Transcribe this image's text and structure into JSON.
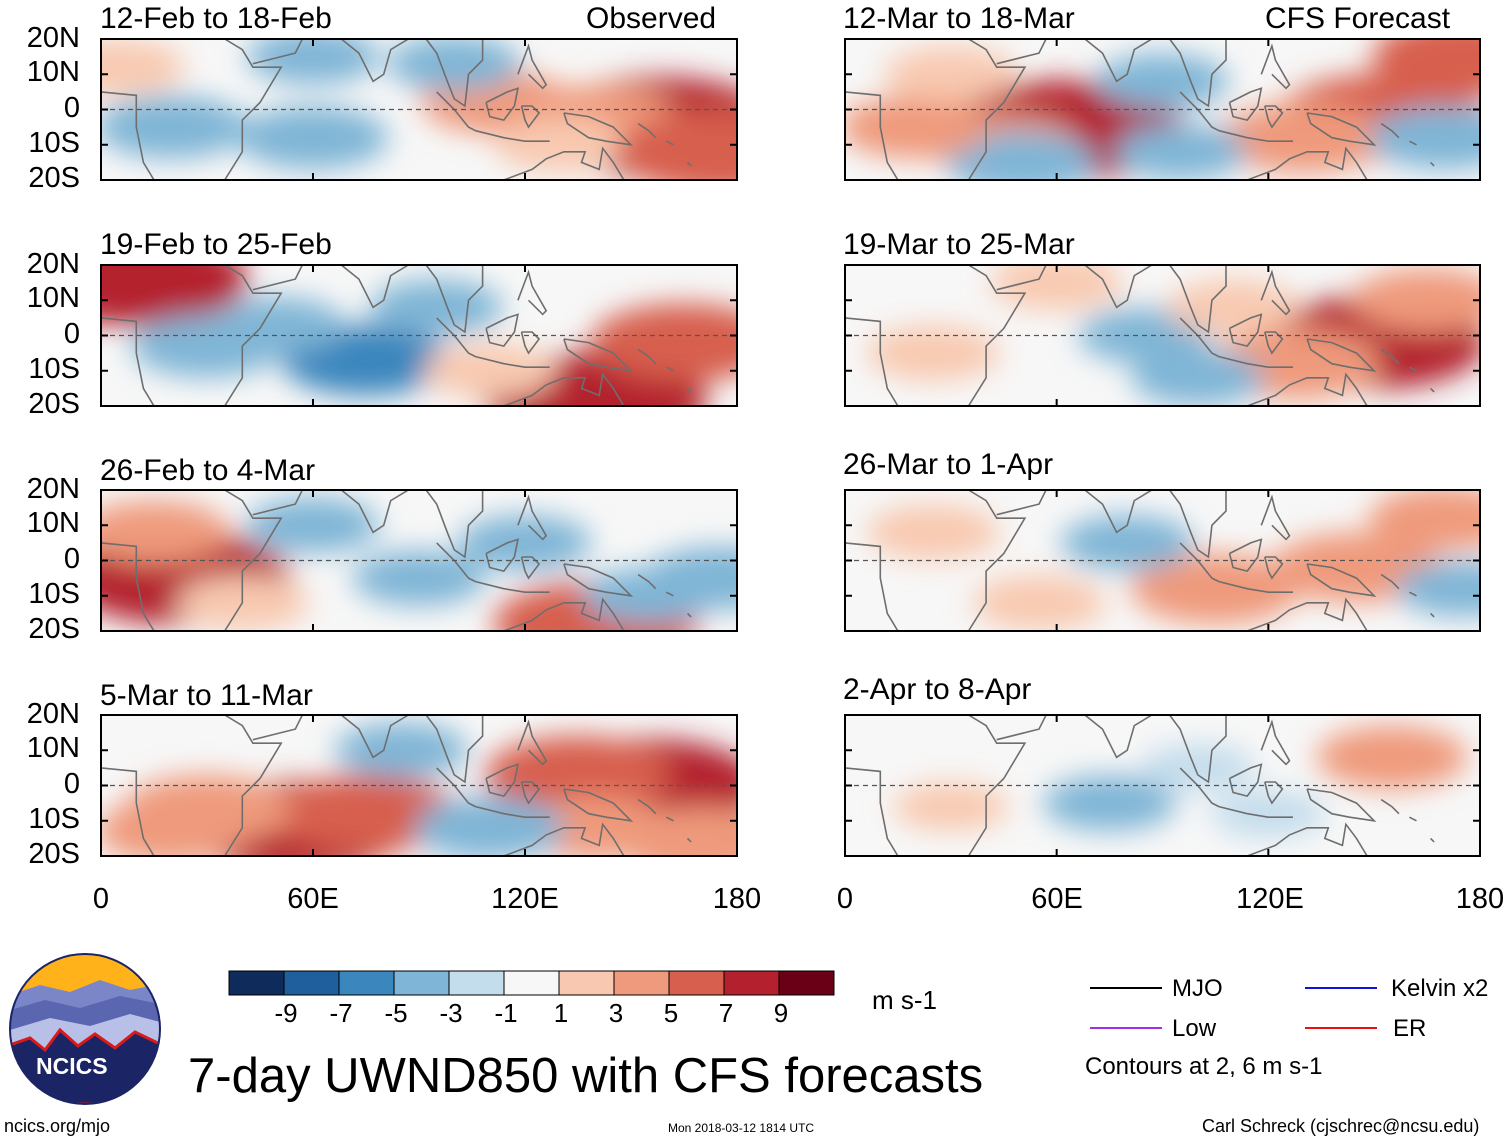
{
  "chart_data": {
    "type": "heatmap",
    "title": "7-day UWND850 with CFS forecasts",
    "variable": "850-hPa zonal wind anomaly",
    "units": "m s-1",
    "column_headers": {
      "left": "Observed",
      "right": "CFS Forecast"
    },
    "x_ticks": [
      "0",
      "60E",
      "120E",
      "180"
    ],
    "x_range": [
      0,
      180
    ],
    "y_ticks": [
      "20N",
      "10N",
      "0",
      "10S",
      "20S"
    ],
    "y_range": [
      -20,
      20
    ],
    "colorbar": {
      "levels": [
        "-9",
        "-7",
        "-5",
        "-3",
        "-1",
        "1",
        "3",
        "5",
        "7",
        "9"
      ],
      "colors": [
        "#0e2b5c",
        "#1f5f9e",
        "#3a86bd",
        "#7fb5d6",
        "#c4ddec",
        "#f7f7f7",
        "#f8c9b0",
        "#ef9a7c",
        "#d75f4d",
        "#b4202e",
        "#6a0015"
      ]
    },
    "panels": [
      {
        "title": "12-Feb to 18-Feb",
        "source": "Observed",
        "anomalies": [
          [
            158,
            -5,
            9,
            "pos"
          ],
          [
            140,
            -3,
            5,
            "pos"
          ],
          [
            112,
            2,
            4,
            "pos"
          ],
          [
            130,
            -10,
            3,
            "pos"
          ],
          [
            60,
            -8,
            -4,
            "neg"
          ],
          [
            20,
            -5,
            -4,
            "neg"
          ],
          [
            100,
            13,
            -3,
            "neg"
          ],
          [
            60,
            15,
            -3,
            "neg"
          ],
          [
            5,
            12,
            3,
            "pos"
          ],
          [
            175,
            -12,
            7,
            "pos"
          ]
        ]
      },
      {
        "title": "19-Feb to 25-Feb",
        "source": "Observed",
        "anomalies": [
          [
            10,
            16,
            8,
            "pos"
          ],
          [
            140,
            -18,
            8,
            "pos"
          ],
          [
            165,
            -2,
            6,
            "pos"
          ],
          [
            75,
            -7,
            -5,
            "neg"
          ],
          [
            30,
            -3,
            -4,
            "neg"
          ],
          [
            95,
            8,
            -3,
            "neg"
          ],
          [
            110,
            -10,
            3,
            "pos"
          ],
          [
            50,
            3,
            -3,
            "neg"
          ]
        ]
      },
      {
        "title": "26-Feb to 4-Mar",
        "source": "Observed",
        "anomalies": [
          [
            22,
            -5,
            8,
            "pos"
          ],
          [
            15,
            8,
            4,
            "pos"
          ],
          [
            140,
            -18,
            7,
            "pos"
          ],
          [
            175,
            -5,
            -4,
            "neg"
          ],
          [
            60,
            10,
            -3,
            "neg"
          ],
          [
            90,
            -5,
            -3,
            "neg"
          ],
          [
            40,
            -12,
            3,
            "pos"
          ],
          [
            120,
            5,
            -3,
            "neg"
          ],
          [
            155,
            -10,
            -3,
            "neg"
          ]
        ]
      },
      {
        "title": "5-Mar to 11-Mar",
        "source": "Observed",
        "anomalies": [
          [
            55,
            -12,
            8,
            "pos"
          ],
          [
            75,
            -8,
            6,
            "pos"
          ],
          [
            30,
            -7,
            5,
            "pos"
          ],
          [
            155,
            0,
            8,
            "pos"
          ],
          [
            135,
            3,
            6,
            "pos"
          ],
          [
            140,
            -12,
            4,
            "pos"
          ],
          [
            110,
            -12,
            -4,
            "neg"
          ],
          [
            85,
            10,
            -3,
            "neg"
          ],
          [
            20,
            -13,
            4,
            "pos"
          ],
          [
            170,
            -16,
            5,
            "pos"
          ]
        ]
      },
      {
        "title": "12-Mar to 18-Mar",
        "source": "CFS Forecast",
        "anomalies": [
          [
            62,
            -6,
            9,
            "pos"
          ],
          [
            45,
            -10,
            4,
            "pos"
          ],
          [
            152,
            -2,
            7,
            "pos"
          ],
          [
            130,
            -8,
            5,
            "pos"
          ],
          [
            176,
            15,
            6,
            "pos"
          ],
          [
            50,
            -15,
            -4,
            "neg"
          ],
          [
            170,
            -8,
            -4,
            "neg"
          ],
          [
            95,
            -12,
            -3,
            "neg"
          ],
          [
            20,
            -5,
            4,
            "pos"
          ],
          [
            30,
            10,
            3,
            "pos"
          ],
          [
            90,
            8,
            -3,
            "neg"
          ]
        ]
      },
      {
        "title": "19-Mar to 25-Mar",
        "source": "CFS Forecast",
        "anomalies": [
          [
            150,
            -2,
            8,
            "pos"
          ],
          [
            128,
            -8,
            5,
            "pos"
          ],
          [
            165,
            10,
            4,
            "pos"
          ],
          [
            85,
            0,
            -3,
            "neg"
          ],
          [
            25,
            -5,
            3,
            "pos"
          ],
          [
            100,
            -12,
            -3,
            "neg"
          ],
          [
            60,
            15,
            3,
            "pos"
          ],
          [
            110,
            8,
            3,
            "pos"
          ]
        ]
      },
      {
        "title": "26-Mar to 1-Apr",
        "source": "CFS Forecast",
        "anomalies": [
          [
            105,
            -8,
            5,
            "pos"
          ],
          [
            145,
            -2,
            5,
            "pos"
          ],
          [
            170,
            12,
            4,
            "pos"
          ],
          [
            80,
            5,
            -3,
            "neg"
          ],
          [
            55,
            -12,
            3,
            "pos"
          ],
          [
            175,
            -8,
            -3,
            "neg"
          ],
          [
            25,
            8,
            3,
            "pos"
          ]
        ]
      },
      {
        "title": "2-Apr to 8-Apr",
        "source": "CFS Forecast",
        "anomalies": [
          [
            155,
            8,
            4,
            "pos"
          ],
          [
            75,
            -5,
            -3,
            "neg"
          ],
          [
            120,
            -8,
            -2,
            "neg"
          ],
          [
            30,
            -6,
            2,
            "pos"
          ],
          [
            100,
            5,
            -2,
            "neg"
          ]
        ]
      }
    ],
    "contour_legend": [
      {
        "label": "MJO",
        "color": "#000000"
      },
      {
        "label": "Kelvin x2",
        "color": "#1010e0"
      },
      {
        "label": "Low",
        "color": "#a030e8"
      },
      {
        "label": "ER",
        "color": "#e81010"
      }
    ],
    "contour_note": "Contours at 2, 6 m s-1"
  },
  "branding": {
    "logo_text": "NCICS",
    "url": "ncics.org/mjo"
  },
  "footer": {
    "timestamp": "Mon 2018-03-12 1814 UTC",
    "author": "Carl Schreck (cjschrec@ncsu.edu)"
  }
}
